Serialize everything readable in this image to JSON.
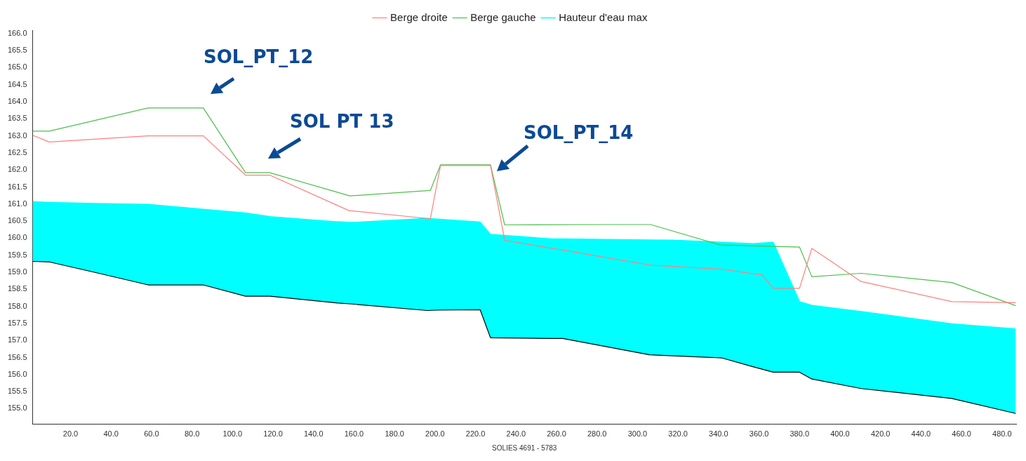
{
  "chart_data": {
    "type": "line",
    "xlabel": "SOLIES 4691 - 5783",
    "xlim": [
      1.3,
      487
    ],
    "ylim": [
      154.54,
      166.1
    ],
    "xticks": [
      {
        "value": 20,
        "label": "20.0"
      },
      {
        "value": 40,
        "label": "40.0"
      },
      {
        "value": 60,
        "label": "60.0"
      },
      {
        "value": 80,
        "label": "80.0"
      },
      {
        "value": 100,
        "label": "100.0"
      },
      {
        "value": 120,
        "label": "120.0"
      },
      {
        "value": 140,
        "label": "140.0"
      },
      {
        "value": 160,
        "label": "160.0"
      },
      {
        "value": 180,
        "label": "180.0"
      },
      {
        "value": 200,
        "label": "200.0"
      },
      {
        "value": 220,
        "label": "220.0"
      },
      {
        "value": 240,
        "label": "240.0"
      },
      {
        "value": 260,
        "label": "260.0"
      },
      {
        "value": 280,
        "label": "280.0"
      },
      {
        "value": 300,
        "label": "300.0"
      },
      {
        "value": 320,
        "label": "320.0"
      },
      {
        "value": 340,
        "label": "340.0"
      },
      {
        "value": 360,
        "label": "360.0"
      },
      {
        "value": 380,
        "label": "380.0"
      },
      {
        "value": 400,
        "label": "400.0"
      },
      {
        "value": 420,
        "label": "420.0"
      },
      {
        "value": 440,
        "label": "440.0"
      },
      {
        "value": 460,
        "label": "460.0"
      },
      {
        "value": 480,
        "label": "480.0"
      }
    ],
    "yticks": [
      {
        "value": 155,
        "label": "155.0"
      },
      {
        "value": 155.5,
        "label": "155.5"
      },
      {
        "value": 156,
        "label": "156.0"
      },
      {
        "value": 156.5,
        "label": "156.5"
      },
      {
        "value": 157,
        "label": "157.0"
      },
      {
        "value": 157.5,
        "label": "157.5"
      },
      {
        "value": 158,
        "label": "158.0"
      },
      {
        "value": 158.5,
        "label": "158.5"
      },
      {
        "value": 159,
        "label": "159.0"
      },
      {
        "value": 159.5,
        "label": "159.5"
      },
      {
        "value": 160,
        "label": "160.0"
      },
      {
        "value": 160.5,
        "label": "160.5"
      },
      {
        "value": 161,
        "label": "161.0"
      },
      {
        "value": 161.5,
        "label": "161.5"
      },
      {
        "value": 162,
        "label": "162.0"
      },
      {
        "value": 162.5,
        "label": "162.5"
      },
      {
        "value": 163,
        "label": "163.0"
      },
      {
        "value": 163.5,
        "label": "163.5"
      },
      {
        "value": 164,
        "label": "164.0"
      },
      {
        "value": 164.5,
        "label": "164.5"
      },
      {
        "value": 165,
        "label": "165.0"
      },
      {
        "value": 165.5,
        "label": "165.5"
      },
      {
        "value": 166,
        "label": "166.0"
      }
    ],
    "grid": false,
    "legend": "top",
    "marker": "none",
    "series": [
      {
        "name": "Berge droite",
        "color": "#ff7f7f",
        "x": [
          1.3,
          9.5,
          58.3,
          85.6,
          106.4,
          118.4,
          157.5,
          197.7,
          202.7,
          227.4,
          234.4,
          306.4,
          341.5,
          361.6,
          367.0,
          380.0,
          386.1,
          410.4,
          455.2,
          486.8
        ],
        "values": [
          163.02,
          162.82,
          163.0,
          163.0,
          161.85,
          161.85,
          160.81,
          160.57,
          162.13,
          162.13,
          159.94,
          159.21,
          159.09,
          158.92,
          158.53,
          158.53,
          159.7,
          158.73,
          158.14,
          158.11
        ]
      },
      {
        "name": "Berge gauche",
        "color": "#4cc04c",
        "x": [
          1.3,
          9.5,
          58.3,
          85.6,
          106.4,
          118.4,
          157.9,
          197.7,
          202.7,
          227.4,
          234.4,
          284.0,
          306.4,
          340.9,
          380.0,
          386.1,
          410.4,
          455.2,
          486.8
        ],
        "values": [
          163.14,
          163.14,
          163.82,
          163.82,
          161.92,
          161.92,
          161.24,
          161.4,
          162.15,
          162.15,
          160.39,
          160.4,
          160.4,
          159.8,
          159.74,
          158.87,
          158.97,
          158.7,
          158.02
        ]
      },
      {
        "color": "#000000",
        "x": [
          1.3,
          9.8,
          32.5,
          58.3,
          85.5,
          106.4,
          118.5,
          152,
          158.9,
          196,
          201.3,
          222.3,
          227.4,
          257.6,
          263.1,
          305.9,
          317.4,
          341.5,
          357,
          367,
          380,
          386.1,
          410.4,
          455.2,
          486.8
        ],
        "values": [
          159.32,
          159.3,
          158.99,
          158.63,
          158.63,
          158.3,
          158.3,
          158.1,
          158.07,
          157.88,
          157.89,
          157.9,
          157.08,
          157.06,
          157.06,
          156.58,
          156.55,
          156.49,
          156.23,
          156.07,
          156.07,
          155.87,
          155.59,
          155.3,
          154.86
        ]
      },
      {
        "name": "Hauteur d'eau max",
        "type": "area",
        "color": "#00ffff",
        "x": [
          1.3,
          9.8,
          32.5,
          58.3,
          85.5,
          106.4,
          118.5,
          152,
          158.9,
          196,
          201.3,
          222.3,
          227.4,
          257.6,
          263.1,
          305.9,
          317.4,
          341.5,
          357,
          367,
          380,
          386.1,
          410.4,
          455.2,
          486.8
        ],
        "values": [
          161.07,
          161.05,
          161.02,
          160.99,
          160.85,
          160.74,
          160.63,
          160.48,
          160.46,
          160.58,
          160.56,
          160.47,
          160.11,
          159.98,
          159.98,
          159.95,
          159.94,
          159.88,
          159.84,
          159.88,
          158.14,
          158.03,
          157.85,
          157.49,
          157.34
        ]
      }
    ],
    "annotations": [
      "SOL_PT_12",
      "SOL PT 13",
      "SOL_PT_14"
    ]
  }
}
